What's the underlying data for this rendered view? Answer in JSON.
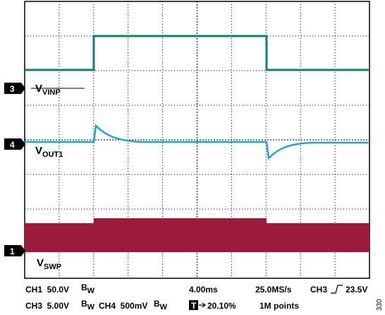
{
  "channel_markers": [
    "3",
    "4",
    "1"
  ],
  "signal_labels": [
    {
      "main": "V",
      "sub": "VINP"
    },
    {
      "main": "V",
      "sub": "OUT1"
    },
    {
      "main": "V",
      "sub": "SWP"
    }
  ],
  "status": {
    "ch1_scale": "CH1  50.0V",
    "ch1_bw": {
      "main": "B",
      "sub": "W"
    },
    "timebase": "4.00ms",
    "sample_rate": "25.0MS/s",
    "trigger_channel": "CH3",
    "trigger_level": "23.5V",
    "ch3_scale": "CH3  5.00V",
    "ch3_bw": {
      "main": "B",
      "sub": "W"
    },
    "ch4_scale": "CH4  500mV",
    "ch4_bw": {
      "main": "B",
      "sub": "W"
    },
    "trigger_icon": "T",
    "trigger_position": "20.10%",
    "record_length": "1M points"
  },
  "figure_number": "330"
}
